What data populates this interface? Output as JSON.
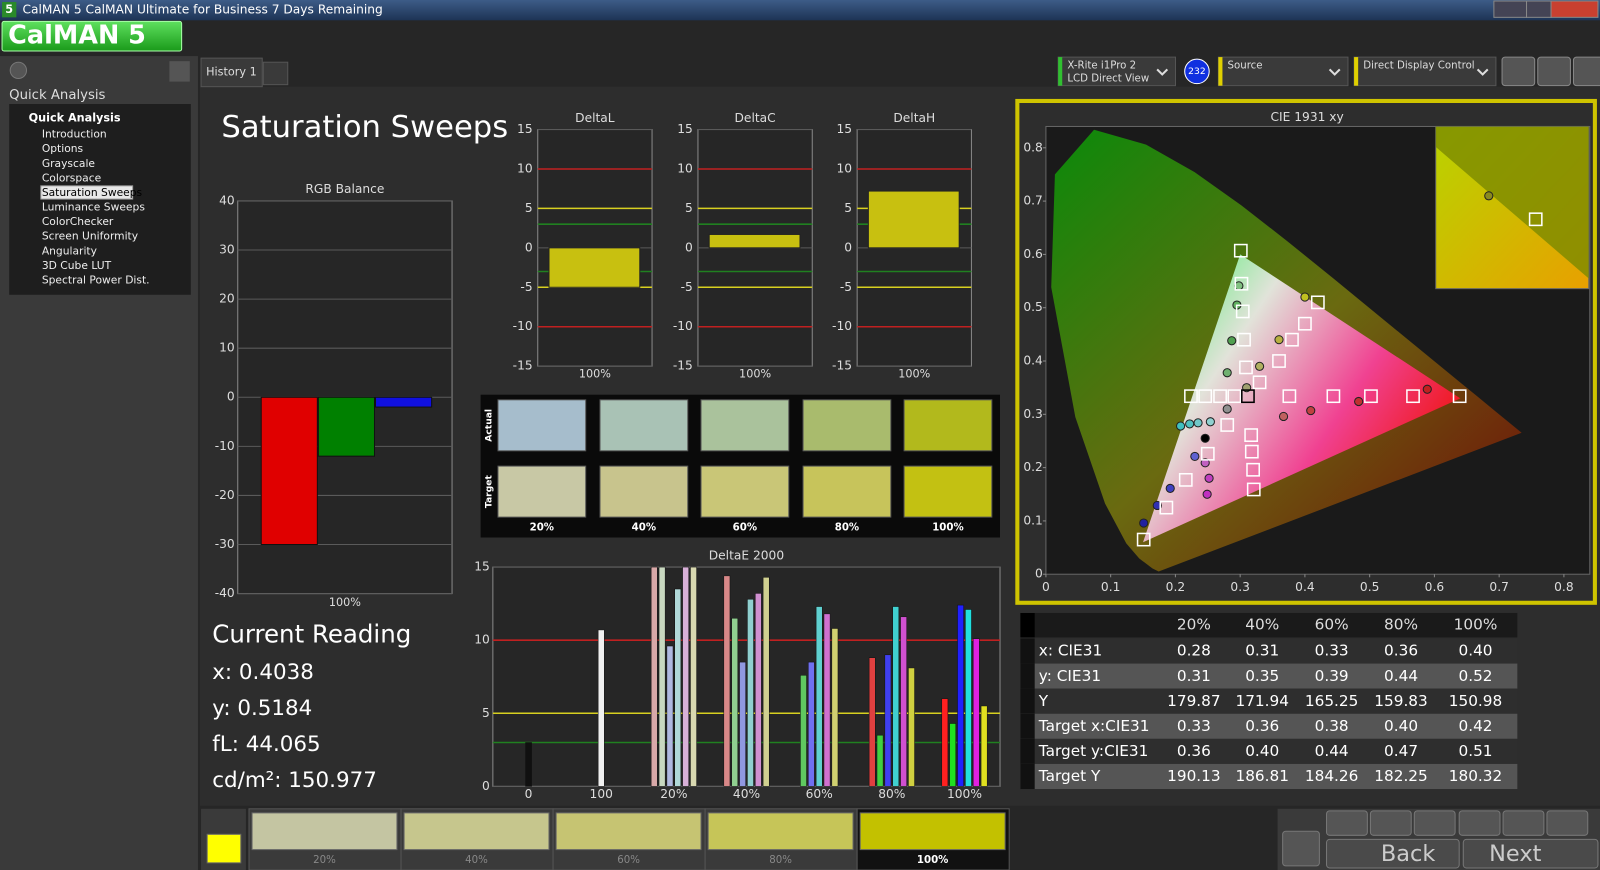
{
  "window": {
    "badge": "5",
    "title": "CalMAN 5 CalMAN Ultimate for Business 7 Days Remaining",
    "logo": "CalMAN 5"
  },
  "sidebar": {
    "header": "Quick Analysis",
    "group": "Quick Analysis",
    "selected": 4,
    "items": [
      "Introduction",
      "Options",
      "Grayscale",
      "Colorspace",
      "Saturation Sweeps",
      "Luminance Sweeps",
      "ColorChecker",
      "Screen Uniformity",
      "Angularity",
      "3D Cube LUT",
      "Spectral Power Dist."
    ]
  },
  "tab": "History 1",
  "devices": [
    {
      "name": "X-Rite i1Pro 2",
      "sub": "LCD Direct View",
      "badge": "232",
      "accent": "#30c030"
    },
    {
      "name": "Source",
      "accent": "#e0d000"
    },
    {
      "name": "Direct Display Control",
      "accent": "#e0d000"
    }
  ],
  "page_title": "Saturation Sweeps",
  "rgb_balance": {
    "type": "bar",
    "title": "RGB Balance",
    "categories": [
      "100%"
    ],
    "series": [
      {
        "color": "#e00000",
        "values": [
          -30
        ]
      },
      {
        "color": "#008000",
        "values": [
          -12
        ]
      },
      {
        "color": "#1010e0",
        "values": [
          -2
        ]
      }
    ],
    "ylim": [
      -40,
      40
    ],
    "yticks": [
      40,
      30,
      20,
      10,
      0,
      -10,
      -20,
      -30,
      -40
    ]
  },
  "delta_charts": [
    {
      "type": "bar",
      "title": "DeltaL",
      "categories": [
        "100%"
      ],
      "values": [
        -5
      ],
      "color": "#c8c010",
      "ylim": [
        -15,
        15
      ],
      "yticks": [
        15,
        10,
        5,
        0,
        -5,
        -10,
        -15
      ],
      "reference_lines": [
        {
          "value": 10,
          "color": "#c02020"
        },
        {
          "value": -10,
          "color": "#c02020"
        },
        {
          "value": 5,
          "color": "#d8d020"
        },
        {
          "value": -5,
          "color": "#d8d020"
        },
        {
          "value": 3,
          "color": "#208020"
        },
        {
          "value": -3,
          "color": "#208020"
        }
      ]
    },
    {
      "type": "bar",
      "title": "DeltaC",
      "categories": [
        "100%"
      ],
      "values": [
        1.7
      ],
      "color": "#c8c010",
      "ylim": [
        -15,
        15
      ],
      "yticks": [
        15,
        10,
        5,
        0,
        -5,
        -10,
        -15
      ],
      "reference_lines": [
        {
          "value": 10,
          "color": "#c02020"
        },
        {
          "value": -10,
          "color": "#c02020"
        },
        {
          "value": 5,
          "color": "#d8d020"
        },
        {
          "value": -5,
          "color": "#d8d020"
        },
        {
          "value": 3,
          "color": "#208020"
        },
        {
          "value": -3,
          "color": "#208020"
        }
      ]
    },
    {
      "type": "bar",
      "title": "DeltaH",
      "categories": [
        "100%"
      ],
      "values": [
        7.2
      ],
      "color": "#c8c010",
      "ylim": [
        -15,
        15
      ],
      "yticks": [
        15,
        10,
        5,
        0,
        -5,
        -10,
        -15
      ],
      "reference_lines": [
        {
          "value": 10,
          "color": "#c02020"
        },
        {
          "value": -10,
          "color": "#c02020"
        },
        {
          "value": 5,
          "color": "#d8d020"
        },
        {
          "value": -5,
          "color": "#d8d020"
        },
        {
          "value": 3,
          "color": "#208020"
        },
        {
          "value": -3,
          "color": "#208020"
        }
      ]
    }
  ],
  "swatches": {
    "row_labels": [
      "Actual",
      "Target"
    ],
    "columns": [
      "20%",
      "40%",
      "60%",
      "80%",
      "100%"
    ],
    "actual": [
      "#a6bdcc",
      "#a9c2b5",
      "#aac29c",
      "#a9bb6d",
      "#b2b91c"
    ],
    "target": [
      "#c8c8a5",
      "#c8c48d",
      "#c9c677",
      "#c7c45b",
      "#c3c112"
    ]
  },
  "delta_e": {
    "type": "bar",
    "title": "DeltaE 2000",
    "categories": [
      "0",
      "100",
      "20%",
      "40%",
      "60%",
      "80%",
      "100%"
    ],
    "ylim": [
      0,
      15
    ],
    "yticks": [
      0,
      5,
      10,
      15
    ],
    "reference_lines": [
      {
        "value": 10,
        "color": "#c02020"
      },
      {
        "value": 5,
        "color": "#d8d020"
      },
      {
        "value": 3,
        "color": "#208020"
      }
    ],
    "groups": [
      [
        {
          "value": 3,
          "color": "#101010"
        }
      ],
      [
        {
          "value": 10.7,
          "color": "#f0f0f0"
        }
      ],
      [
        {
          "value": 15,
          "color": "#d8a8a8"
        },
        {
          "value": 15,
          "color": "#c8d8c0"
        },
        {
          "value": 9.6,
          "color": "#b0b8e0"
        },
        {
          "value": 13.5,
          "color": "#b0d8d8"
        },
        {
          "value": 15,
          "color": "#d8b0d8"
        },
        {
          "value": 15,
          "color": "#d8d8b0"
        }
      ],
      [
        {
          "value": 14.4,
          "color": "#d88888"
        },
        {
          "value": 11.5,
          "color": "#90d090"
        },
        {
          "value": 8.5,
          "color": "#9098e0"
        },
        {
          "value": 12.8,
          "color": "#90d0d0"
        },
        {
          "value": 13.2,
          "color": "#d090d0"
        },
        {
          "value": 14.3,
          "color": "#d0d090"
        }
      ],
      [
        {
          "value": 7.6,
          "color": "#60c860"
        },
        {
          "value": 8.5,
          "color": "#7070f0"
        },
        {
          "value": 12.3,
          "color": "#60d0d0"
        },
        {
          "value": 11.8,
          "color": "#d070d0"
        },
        {
          "value": 10.8,
          "color": "#d0d070"
        }
      ],
      [
        {
          "value": 8.8,
          "color": "#e04040"
        },
        {
          "value": 3.5,
          "color": "#40d040"
        },
        {
          "value": 9,
          "color": "#4040f0"
        },
        {
          "value": 12.3,
          "color": "#40d0d0"
        },
        {
          "value": 11.6,
          "color": "#d050d0"
        },
        {
          "value": 8.1,
          "color": "#d0d040"
        }
      ],
      [
        {
          "value": 6,
          "color": "#ff2020"
        },
        {
          "value": 4.3,
          "color": "#20e020"
        },
        {
          "value": 12.4,
          "color": "#2020ff"
        },
        {
          "value": 12.1,
          "color": "#20e0e0"
        },
        {
          "value": 10.1,
          "color": "#e020e0"
        },
        {
          "value": 5.5,
          "color": "#e0e020"
        }
      ]
    ]
  },
  "cie": {
    "type": "scatter",
    "title": "CIE 1931 xy",
    "xlim": [
      0,
      0.84
    ],
    "ylim": [
      0,
      0.84
    ],
    "xticks": [
      0,
      0.1,
      0.2,
      0.3,
      0.4,
      0.5,
      0.6,
      0.7,
      0.8
    ],
    "yticks": [
      0,
      0.1,
      0.2,
      0.3,
      0.4,
      0.5,
      0.6,
      0.7,
      0.8
    ],
    "targets": {
      "x": [
        0.301,
        0.302,
        0.304,
        0.306,
        0.309,
        0.376,
        0.444,
        0.502,
        0.567,
        0.639,
        0.224,
        0.246,
        0.269,
        0.291,
        0.28,
        0.25,
        0.216,
        0.186,
        0.151,
        0.317,
        0.318,
        0.32,
        0.321,
        0.33,
        0.36,
        0.38,
        0.4,
        0.42,
        0.312
      ],
      "y": [
        0.607,
        0.545,
        0.493,
        0.44,
        0.388,
        0.334,
        0.334,
        0.334,
        0.334,
        0.334,
        0.334,
        0.334,
        0.334,
        0.334,
        0.28,
        0.226,
        0.177,
        0.125,
        0.065,
        0.261,
        0.23,
        0.196,
        0.159,
        0.36,
        0.4,
        0.44,
        0.47,
        0.51,
        0.334
      ]
    },
    "measured": {
      "x": [
        0.298,
        0.295,
        0.287,
        0.28,
        0.367,
        0.409,
        0.483,
        0.589,
        0.208,
        0.222,
        0.235,
        0.254,
        0.23,
        0.192,
        0.172,
        0.151,
        0.246,
        0.252,
        0.249,
        0.246,
        0.28,
        0.31,
        0.33,
        0.36,
        0.4
      ],
      "y": [
        0.541,
        0.505,
        0.438,
        0.378,
        0.296,
        0.307,
        0.324,
        0.347,
        0.278,
        0.282,
        0.284,
        0.286,
        0.221,
        0.161,
        0.129,
        0.096,
        0.209,
        0.18,
        0.15,
        0.255,
        0.31,
        0.35,
        0.39,
        0.44,
        0.52
      ],
      "colors": [
        "#80c080",
        "#60b060",
        "#50a050",
        "#70b070",
        "#c06060",
        "#c04040",
        "#c03030",
        "#c02020",
        "#40c0c0",
        "#50c0c0",
        "#70c8c8",
        "#90d0d0",
        "#6060d0",
        "#4040c0",
        "#3030b0",
        "#2020a0",
        "#c060c0",
        "#c040c0",
        "#c030c0",
        "#000000",
        "#909090",
        "#a0a070",
        "#b0b060",
        "#b8b040",
        "#c0c020"
      ]
    },
    "inset": {
      "measured": 24,
      "target": 27
    }
  },
  "table": {
    "columns": [
      "20%",
      "40%",
      "60%",
      "80%",
      "100%"
    ],
    "rows": [
      [
        "x: CIE31",
        "0.28",
        "0.31",
        "0.33",
        "0.36",
        "0.40"
      ],
      [
        "y: CIE31",
        "0.31",
        "0.35",
        "0.39",
        "0.44",
        "0.52"
      ],
      [
        "Y",
        "179.87",
        "171.94",
        "165.25",
        "159.83",
        "150.98"
      ],
      [
        "Target x:CIE31",
        "0.33",
        "0.36",
        "0.38",
        "0.40",
        "0.42"
      ],
      [
        "Target y:CIE31",
        "0.36",
        "0.40",
        "0.44",
        "0.47",
        "0.51"
      ],
      [
        "Target Y",
        "190.13",
        "186.81",
        "184.26",
        "182.25",
        "180.32"
      ]
    ]
  },
  "current_reading": {
    "title": "Current Reading",
    "lines": [
      "x: 0.4038",
      "y: 0.5184",
      "fL: 44.065",
      "cd/m²: 150.977"
    ]
  },
  "strip": {
    "labels": [
      "20%",
      "40%",
      "60%",
      "80%",
      "100%"
    ],
    "colors": [
      "#c4c5a2",
      "#c6c68d",
      "#c6c472",
      "#c6c558",
      "#c3c100"
    ],
    "selected": 4
  },
  "nav": {
    "back": "Back",
    "next": "Next"
  }
}
